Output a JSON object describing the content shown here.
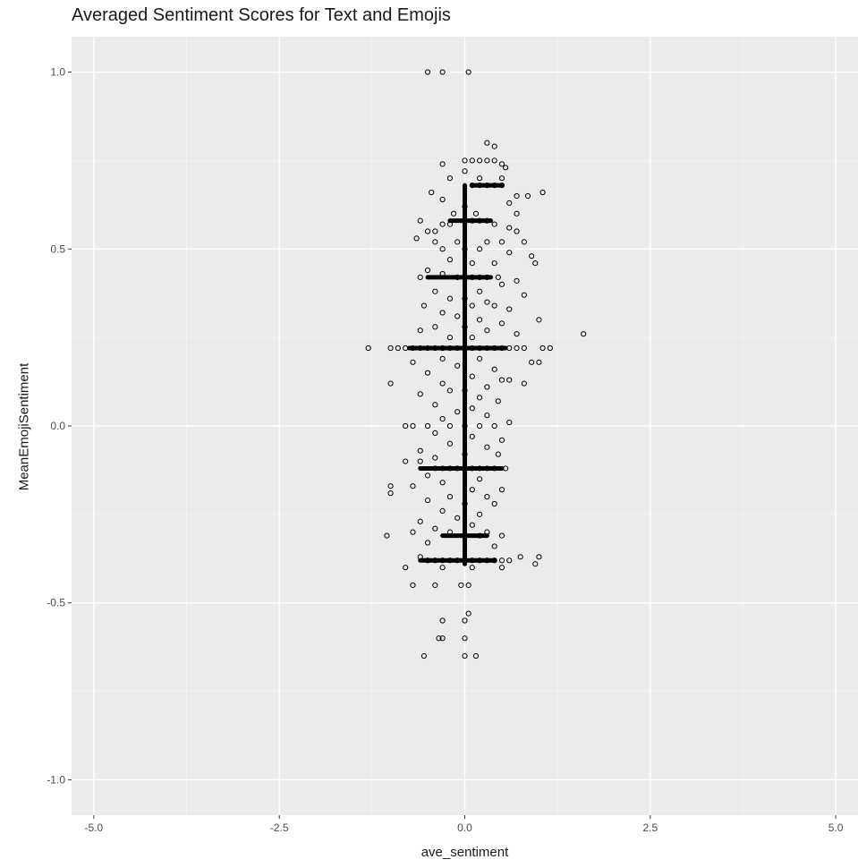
{
  "chart_data": {
    "type": "scatter",
    "title": "Averaged Sentiment Scores for Text and Emojis",
    "xlabel": "ave_sentiment",
    "ylabel": "MeanEmojiSentiment",
    "xlim": [
      -5.3,
      5.3
    ],
    "ylim": [
      -1.1,
      1.1
    ],
    "x_ticks": [
      "-5.0",
      "-2.5",
      "0.0",
      "2.5",
      "5.0"
    ],
    "y_ticks": [
      "1.0",
      "0.5",
      "0.0",
      "-0.5",
      "-1.0"
    ],
    "grid": true,
    "marker": "open-circle",
    "note_dense": "Points form a dense vertical band around x = 0; heavy horizontal clusters at y ≈ 0.68, 0.58, 0.42, 0.22, -0.12, -0.38.",
    "points": [
      [
        -0.5,
        1.0
      ],
      [
        -0.3,
        1.0
      ],
      [
        0.05,
        1.0
      ],
      [
        0.3,
        0.8
      ],
      [
        0.4,
        0.79
      ],
      [
        -0.3,
        0.74
      ],
      [
        0.0,
        0.75
      ],
      [
        0.1,
        0.75
      ],
      [
        0.2,
        0.75
      ],
      [
        0.3,
        0.75
      ],
      [
        0.4,
        0.75
      ],
      [
        0.5,
        0.74
      ],
      [
        0.55,
        0.73
      ],
      [
        0.0,
        0.72
      ],
      [
        0.2,
        0.7
      ],
      [
        -0.2,
        0.7
      ],
      [
        0.5,
        0.7
      ],
      [
        0.7,
        0.65
      ],
      [
        0.85,
        0.65
      ],
      [
        1.05,
        0.66
      ],
      [
        -0.45,
        0.66
      ],
      [
        -0.3,
        0.64
      ],
      [
        0.1,
        0.68
      ],
      [
        0.2,
        0.68
      ],
      [
        0.3,
        0.68
      ],
      [
        0.4,
        0.68
      ],
      [
        0.5,
        0.68
      ],
      [
        0.6,
        0.63
      ],
      [
        0.0,
        0.62
      ],
      [
        0.15,
        0.6
      ],
      [
        -0.15,
        0.6
      ],
      [
        0.7,
        0.6
      ],
      [
        -0.6,
        0.58
      ],
      [
        -0.3,
        0.57
      ],
      [
        -0.2,
        0.57
      ],
      [
        0.1,
        0.58
      ],
      [
        0.2,
        0.58
      ],
      [
        0.3,
        0.58
      ],
      [
        0.4,
        0.57
      ],
      [
        0.6,
        0.56
      ],
      [
        0.7,
        0.55
      ],
      [
        -0.5,
        0.55
      ],
      [
        -0.4,
        0.55
      ],
      [
        -0.65,
        0.53
      ],
      [
        -0.4,
        0.52
      ],
      [
        -0.1,
        0.52
      ],
      [
        0.3,
        0.52
      ],
      [
        0.5,
        0.52
      ],
      [
        0.8,
        0.52
      ],
      [
        -0.3,
        0.5
      ],
      [
        0.0,
        0.5
      ],
      [
        0.2,
        0.5
      ],
      [
        0.6,
        0.49
      ],
      [
        0.9,
        0.48
      ],
      [
        -0.2,
        0.47
      ],
      [
        0.1,
        0.46
      ],
      [
        0.4,
        0.46
      ],
      [
        0.95,
        0.46
      ],
      [
        -0.5,
        0.44
      ],
      [
        -0.3,
        0.43
      ],
      [
        -0.1,
        0.42
      ],
      [
        0.0,
        0.42
      ],
      [
        0.1,
        0.42
      ],
      [
        0.2,
        0.42
      ],
      [
        0.3,
        0.42
      ],
      [
        0.45,
        0.42
      ],
      [
        0.7,
        0.41
      ],
      [
        -0.6,
        0.42
      ],
      [
        0.5,
        0.4
      ],
      [
        -0.4,
        0.38
      ],
      [
        0.2,
        0.38
      ],
      [
        0.8,
        0.37
      ],
      [
        -0.2,
        0.36
      ],
      [
        0.0,
        0.36
      ],
      [
        0.3,
        0.35
      ],
      [
        -0.55,
        0.34
      ],
      [
        0.1,
        0.34
      ],
      [
        0.4,
        0.34
      ],
      [
        0.6,
        0.33
      ],
      [
        -0.3,
        0.32
      ],
      [
        -0.1,
        0.31
      ],
      [
        0.2,
        0.3
      ],
      [
        1.0,
        0.3
      ],
      [
        0.5,
        0.29
      ],
      [
        -0.4,
        0.28
      ],
      [
        0.0,
        0.28
      ],
      [
        0.3,
        0.27
      ],
      [
        -0.6,
        0.27
      ],
      [
        0.7,
        0.26
      ],
      [
        1.6,
        0.26
      ],
      [
        -0.2,
        0.25
      ],
      [
        0.1,
        0.25
      ],
      [
        -1.3,
        0.22
      ],
      [
        -1.0,
        0.22
      ],
      [
        -0.9,
        0.22
      ],
      [
        -0.8,
        0.22
      ],
      [
        -0.7,
        0.22
      ],
      [
        -0.6,
        0.22
      ],
      [
        -0.5,
        0.22
      ],
      [
        -0.4,
        0.22
      ],
      [
        -0.3,
        0.22
      ],
      [
        -0.2,
        0.22
      ],
      [
        -0.1,
        0.22
      ],
      [
        0.0,
        0.22
      ],
      [
        0.1,
        0.22
      ],
      [
        0.2,
        0.22
      ],
      [
        0.3,
        0.22
      ],
      [
        0.4,
        0.22
      ],
      [
        0.5,
        0.22
      ],
      [
        0.6,
        0.22
      ],
      [
        0.7,
        0.22
      ],
      [
        0.8,
        0.22
      ],
      [
        1.05,
        0.22
      ],
      [
        1.15,
        0.22
      ],
      [
        -0.3,
        0.19
      ],
      [
        0.2,
        0.19
      ],
      [
        -0.7,
        0.18
      ],
      [
        0.9,
        0.18
      ],
      [
        1.0,
        0.18
      ],
      [
        -0.1,
        0.17
      ],
      [
        0.4,
        0.16
      ],
      [
        -0.5,
        0.15
      ],
      [
        0.1,
        0.14
      ],
      [
        0.5,
        0.13
      ],
      [
        0.6,
        0.13
      ],
      [
        0.8,
        0.12
      ],
      [
        -1.0,
        0.12
      ],
      [
        -0.3,
        0.12
      ],
      [
        0.3,
        0.11
      ],
      [
        -0.2,
        0.1
      ],
      [
        0.0,
        0.1
      ],
      [
        -0.6,
        0.09
      ],
      [
        0.2,
        0.08
      ],
      [
        0.45,
        0.07
      ],
      [
        -0.4,
        0.06
      ],
      [
        0.1,
        0.05
      ],
      [
        -0.1,
        0.04
      ],
      [
        0.3,
        0.03
      ],
      [
        -0.3,
        0.02
      ],
      [
        0.6,
        0.01
      ],
      [
        -0.8,
        0.0
      ],
      [
        -0.7,
        0.0
      ],
      [
        -0.5,
        0.0
      ],
      [
        -0.2,
        0.0
      ],
      [
        0.0,
        0.0
      ],
      [
        0.2,
        0.0
      ],
      [
        0.4,
        0.0
      ],
      [
        -0.4,
        -0.02
      ],
      [
        0.1,
        -0.03
      ],
      [
        0.5,
        -0.04
      ],
      [
        -0.2,
        -0.05
      ],
      [
        0.3,
        -0.06
      ],
      [
        -0.6,
        -0.07
      ],
      [
        0.0,
        -0.08
      ],
      [
        0.45,
        -0.08
      ],
      [
        -0.4,
        -0.09
      ],
      [
        -0.8,
        -0.1
      ],
      [
        -0.6,
        -0.1
      ],
      [
        -0.4,
        -0.12
      ],
      [
        -0.3,
        -0.12
      ],
      [
        -0.2,
        -0.12
      ],
      [
        -0.1,
        -0.12
      ],
      [
        0.0,
        -0.12
      ],
      [
        0.1,
        -0.12
      ],
      [
        0.2,
        -0.12
      ],
      [
        0.3,
        -0.12
      ],
      [
        0.4,
        -0.12
      ],
      [
        0.55,
        -0.12
      ],
      [
        -0.5,
        -0.14
      ],
      [
        0.2,
        -0.15
      ],
      [
        -0.3,
        -0.16
      ],
      [
        -1.0,
        -0.17
      ],
      [
        -1.0,
        -0.19
      ],
      [
        -0.7,
        -0.17
      ],
      [
        0.1,
        -0.18
      ],
      [
        0.5,
        -0.18
      ],
      [
        -0.2,
        -0.2
      ],
      [
        0.3,
        -0.2
      ],
      [
        -0.5,
        -0.21
      ],
      [
        0.0,
        -0.22
      ],
      [
        0.4,
        -0.22
      ],
      [
        -0.3,
        -0.24
      ],
      [
        0.2,
        -0.25
      ],
      [
        -0.1,
        -0.26
      ],
      [
        -0.6,
        -0.27
      ],
      [
        0.1,
        -0.28
      ],
      [
        -0.4,
        -0.29
      ],
      [
        0.3,
        -0.3
      ],
      [
        -0.7,
        -0.3
      ],
      [
        -0.2,
        -0.3
      ],
      [
        0.0,
        -0.31
      ],
      [
        0.2,
        -0.31
      ],
      [
        0.5,
        -0.31
      ],
      [
        -1.05,
        -0.31
      ],
      [
        -0.5,
        -0.33
      ],
      [
        0.4,
        -0.34
      ],
      [
        -0.6,
        -0.37
      ],
      [
        -0.5,
        -0.38
      ],
      [
        -0.4,
        -0.38
      ],
      [
        -0.3,
        -0.38
      ],
      [
        -0.2,
        -0.38
      ],
      [
        -0.1,
        -0.38
      ],
      [
        0.0,
        -0.38
      ],
      [
        0.1,
        -0.38
      ],
      [
        0.2,
        -0.38
      ],
      [
        0.3,
        -0.38
      ],
      [
        0.4,
        -0.38
      ],
      [
        0.5,
        -0.38
      ],
      [
        0.6,
        -0.38
      ],
      [
        0.75,
        -0.37
      ],
      [
        0.95,
        -0.39
      ],
      [
        1.0,
        -0.37
      ],
      [
        -0.8,
        -0.4
      ],
      [
        -0.3,
        -0.4
      ],
      [
        0.1,
        -0.4
      ],
      [
        0.5,
        -0.4
      ],
      [
        -0.7,
        -0.45
      ],
      [
        -0.4,
        -0.45
      ],
      [
        -0.05,
        -0.45
      ],
      [
        0.05,
        -0.45
      ],
      [
        0.05,
        -0.53
      ],
      [
        -0.3,
        -0.55
      ],
      [
        0.0,
        -0.55
      ],
      [
        -0.35,
        -0.6
      ],
      [
        -0.3,
        -0.6
      ],
      [
        0.0,
        -0.6
      ],
      [
        -0.55,
        -0.65
      ],
      [
        0.0,
        -0.65
      ],
      [
        0.15,
        -0.65
      ]
    ],
    "segments": [
      {
        "x1": 0.0,
        "y1": -0.39,
        "x2": 0.0,
        "y2": 0.68
      },
      {
        "x1": -0.75,
        "y1": 0.22,
        "x2": 0.55,
        "y2": 0.22
      },
      {
        "x1": -0.5,
        "y1": 0.42,
        "x2": 0.35,
        "y2": 0.42
      },
      {
        "x1": -0.2,
        "y1": 0.58,
        "x2": 0.35,
        "y2": 0.58
      },
      {
        "x1": 0.1,
        "y1": 0.68,
        "x2": 0.5,
        "y2": 0.68
      },
      {
        "x1": -0.6,
        "y1": -0.12,
        "x2": 0.5,
        "y2": -0.12
      },
      {
        "x1": -0.6,
        "y1": -0.38,
        "x2": 0.4,
        "y2": -0.38
      },
      {
        "x1": -0.3,
        "y1": -0.31,
        "x2": 0.3,
        "y2": -0.31
      }
    ]
  }
}
